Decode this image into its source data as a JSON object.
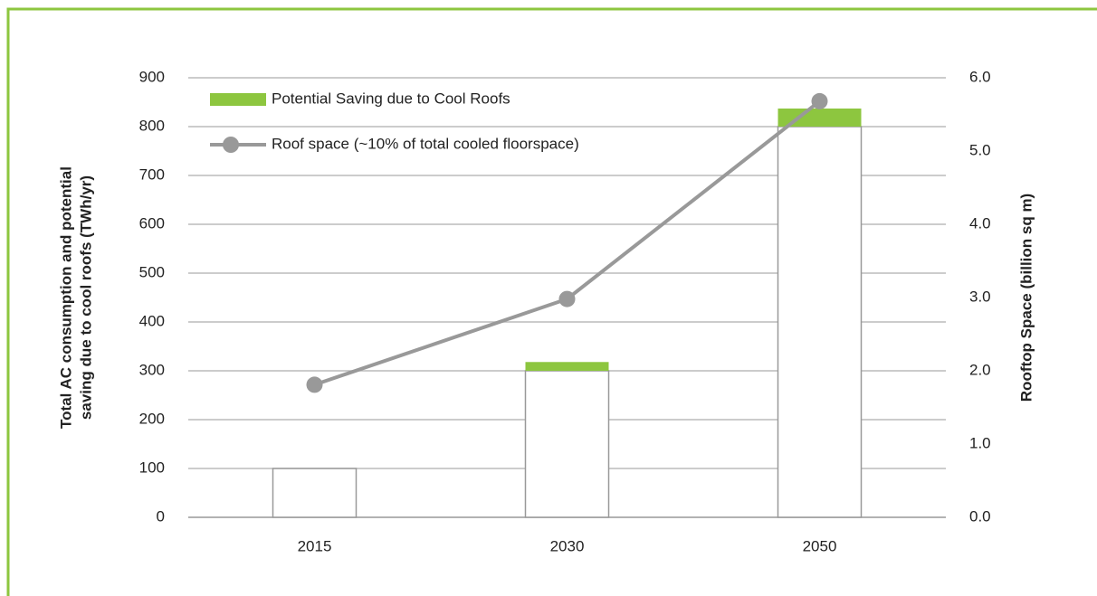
{
  "chart_data": {
    "type": "bar_line",
    "ylabel": [
      "Total AC consumption and potential",
      "saving due to cool roofs (TWh/yr)"
    ],
    "y2label": "Rooftop Space (billion sq m)",
    "categories": [
      "2015",
      "2030",
      "2050"
    ],
    "series": [
      {
        "type": "bar",
        "color": "#ffffff",
        "stroke": "#999999",
        "values": [
          100,
          300,
          800
        ]
      },
      {
        "type": "bar",
        "name": "Potential Saving due to Cool Roofs",
        "color": "#8dc63f",
        "values": [
          0,
          18,
          37
        ]
      },
      {
        "type": "line",
        "name": "Roof space (~10% of total cooled floorspace)",
        "color": "#999999",
        "axis": "y2",
        "values": [
          1.81,
          2.98,
          5.68
        ]
      }
    ],
    "ylim": [
      0,
      900
    ],
    "yticks": [
      0,
      100,
      200,
      300,
      400,
      500,
      600,
      700,
      800,
      900
    ],
    "y2lim": [
      0,
      6
    ],
    "y2ticks": [
      {
        "value": 0,
        "label": "0.0"
      },
      {
        "value": 1,
        "label": "1.0"
      },
      {
        "value": 2,
        "label": "2.0"
      },
      {
        "value": 3,
        "label": "3.0"
      },
      {
        "value": 4,
        "label": "4.0"
      },
      {
        "value": 5,
        "label": "5.0"
      },
      {
        "value": 6,
        "label": "6.0"
      }
    ],
    "grid": true,
    "legend": "upper left"
  }
}
